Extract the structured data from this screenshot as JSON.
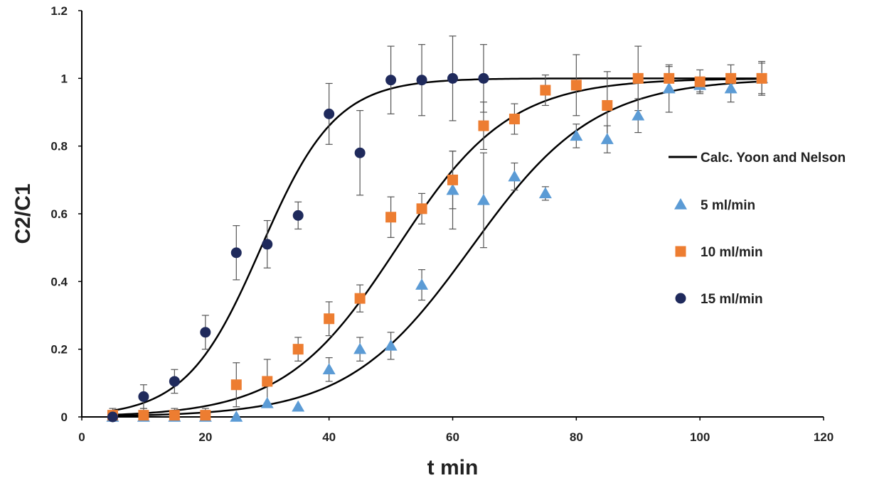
{
  "chart_data": {
    "type": "scatter",
    "title": "",
    "xlabel": "t min",
    "ylabel": "C2/C1",
    "xlim": [
      0,
      120
    ],
    "ylim": [
      0,
      1.2
    ],
    "xticks": [
      0,
      20,
      40,
      60,
      80,
      100,
      120
    ],
    "yticks": [
      0,
      0.2,
      0.4,
      0.6,
      0.8,
      1,
      1.2
    ],
    "grid": false,
    "legend_position": "right",
    "fit_curves": {
      "name": "Calc. Yoon and Nelson",
      "color": "#000000",
      "curves": [
        {
          "for": "15 ml/min",
          "tau": 29,
          "k": 0.165
        },
        {
          "for": "10 ml/min",
          "tau": 51,
          "k": 0.11
        },
        {
          "for": "5 ml/min",
          "tau": 63,
          "k": 0.1
        }
      ]
    },
    "series": [
      {
        "name": "5 ml/min",
        "marker": "triangle",
        "color": "#5B9BD5",
        "x": [
          5,
          10,
          15,
          20,
          25,
          30,
          35,
          40,
          45,
          50,
          55,
          60,
          65,
          70,
          75,
          80,
          85,
          90,
          95,
          100,
          105,
          110
        ],
        "y": [
          0,
          0,
          0,
          0,
          0,
          0.04,
          0.03,
          0.14,
          0.2,
          0.21,
          0.39,
          0.67,
          0.64,
          0.71,
          0.66,
          0.83,
          0.82,
          0.89,
          0.97,
          0.98,
          0.97,
          1.0
        ],
        "err": [
          0,
          0,
          0,
          0,
          0,
          0,
          0,
          0.035,
          0.035,
          0.04,
          0.045,
          0.115,
          0.14,
          0.04,
          0.02,
          0.035,
          0.04,
          0.05,
          0.07,
          0.02,
          0.04,
          0.05
        ]
      },
      {
        "name": "10 ml/min",
        "marker": "square",
        "color": "#ED7D31",
        "x": [
          5,
          10,
          15,
          20,
          25,
          30,
          35,
          40,
          45,
          50,
          55,
          60,
          65,
          70,
          75,
          80,
          85,
          90,
          95,
          100,
          105,
          110
        ],
        "y": [
          0.005,
          0.005,
          0.005,
          0.005,
          0.095,
          0.105,
          0.2,
          0.29,
          0.35,
          0.59,
          0.615,
          0.7,
          0.86,
          0.88,
          0.965,
          0.98,
          0.92,
          1.0,
          1.0,
          0.99,
          1.0,
          1.0
        ],
        "err": [
          0.02,
          0.02,
          0.02,
          0.02,
          0.065,
          0.065,
          0.035,
          0.05,
          0.04,
          0.06,
          0.045,
          0.085,
          0.07,
          0.045,
          0.045,
          0.09,
          0.1,
          0.095,
          0.035,
          0.035,
          0.04,
          0.045
        ]
      },
      {
        "name": "15 ml/min",
        "marker": "circle",
        "color": "#1F2A5C",
        "x": [
          5,
          10,
          15,
          20,
          25,
          30,
          35,
          40,
          45,
          50,
          55,
          60,
          65
        ],
        "y": [
          0,
          0.06,
          0.105,
          0.25,
          0.485,
          0.51,
          0.595,
          0.895,
          0.78,
          0.995,
          0.995,
          1.0,
          1.0
        ],
        "err": [
          0,
          0.035,
          0.035,
          0.05,
          0.08,
          0.07,
          0.04,
          0.09,
          0.125,
          0.1,
          0.105,
          0.125,
          0.1
        ]
      }
    ]
  }
}
